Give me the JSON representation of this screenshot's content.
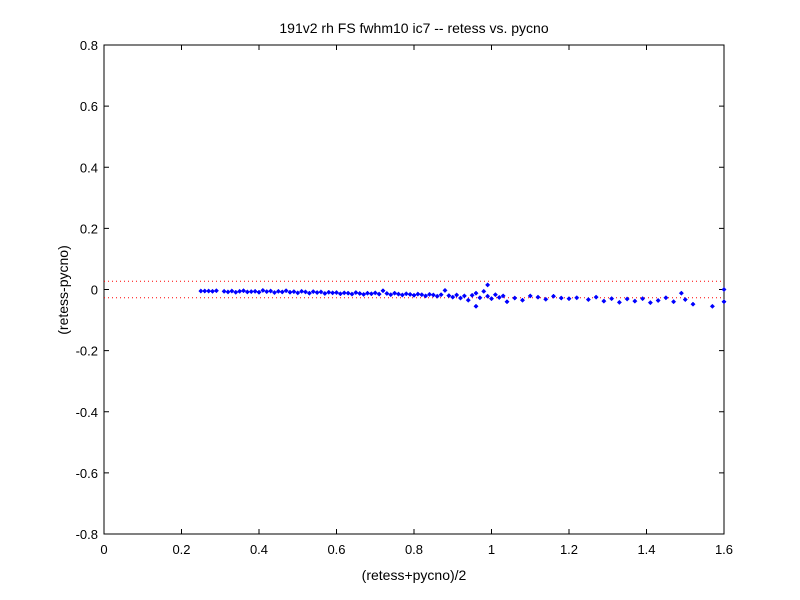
{
  "chart_data": {
    "type": "scatter",
    "title": "191v2 rh FS fwhm10 ic7 -- retess vs. pycno",
    "xlabel": "(retess+pycno)/2",
    "ylabel": "(retess-pycno)",
    "xlim": [
      0,
      1.6
    ],
    "ylim": [
      -0.8,
      0.8
    ],
    "xticks": [
      0,
      0.2,
      0.4,
      0.6,
      0.8,
      1,
      1.2,
      1.4,
      1.6
    ],
    "xtick_labels": [
      "0",
      "0.2",
      "0.4",
      "0.6",
      "0.8",
      "1",
      "1.2",
      "1.4",
      "1.6"
    ],
    "yticks": [
      0.8,
      0.6,
      0.4,
      0.2,
      0,
      -0.2,
      -0.4,
      -0.6,
      -0.8
    ],
    "ytick_labels": [
      "0.8",
      "0.6",
      "0.4",
      "0.2",
      "0",
      "-0.2",
      "-0.4",
      "-0.6",
      "-0.8"
    ],
    "grid": false,
    "marker_color": "#0000ff",
    "reference_line_color": "#ff0000",
    "reference_lines": [
      0.027,
      -0.027
    ],
    "series": [
      {
        "points": [
          [
            0.25,
            -0.005
          ],
          [
            0.26,
            -0.005
          ],
          [
            0.27,
            -0.005
          ],
          [
            0.28,
            -0.006
          ],
          [
            0.29,
            -0.004
          ],
          [
            0.31,
            -0.006
          ],
          [
            0.32,
            -0.008
          ],
          [
            0.33,
            -0.005
          ],
          [
            0.34,
            -0.009
          ],
          [
            0.35,
            -0.006
          ],
          [
            0.36,
            -0.004
          ],
          [
            0.37,
            -0.008
          ],
          [
            0.38,
            -0.007
          ],
          [
            0.39,
            -0.006
          ],
          [
            0.4,
            -0.009
          ],
          [
            0.41,
            -0.003
          ],
          [
            0.42,
            -0.007
          ],
          [
            0.43,
            -0.005
          ],
          [
            0.44,
            -0.01
          ],
          [
            0.45,
            -0.006
          ],
          [
            0.46,
            -0.008
          ],
          [
            0.47,
            -0.004
          ],
          [
            0.48,
            -0.009
          ],
          [
            0.49,
            -0.007
          ],
          [
            0.5,
            -0.011
          ],
          [
            0.51,
            -0.006
          ],
          [
            0.52,
            -0.008
          ],
          [
            0.53,
            -0.012
          ],
          [
            0.54,
            -0.007
          ],
          [
            0.55,
            -0.01
          ],
          [
            0.56,
            -0.008
          ],
          [
            0.57,
            -0.013
          ],
          [
            0.58,
            -0.009
          ],
          [
            0.59,
            -0.011
          ],
          [
            0.6,
            -0.01
          ],
          [
            0.61,
            -0.014
          ],
          [
            0.62,
            -0.011
          ],
          [
            0.63,
            -0.012
          ],
          [
            0.64,
            -0.015
          ],
          [
            0.65,
            -0.01
          ],
          [
            0.66,
            -0.013
          ],
          [
            0.67,
            -0.016
          ],
          [
            0.68,
            -0.012
          ],
          [
            0.69,
            -0.014
          ],
          [
            0.7,
            -0.011
          ],
          [
            0.71,
            -0.015
          ],
          [
            0.72,
            -0.004
          ],
          [
            0.73,
            -0.013
          ],
          [
            0.74,
            -0.017
          ],
          [
            0.75,
            -0.012
          ],
          [
            0.76,
            -0.015
          ],
          [
            0.77,
            -0.018
          ],
          [
            0.78,
            -0.014
          ],
          [
            0.79,
            -0.016
          ],
          [
            0.8,
            -0.019
          ],
          [
            0.81,
            -0.015
          ],
          [
            0.82,
            -0.017
          ],
          [
            0.83,
            -0.021
          ],
          [
            0.84,
            -0.016
          ],
          [
            0.85,
            -0.018
          ],
          [
            0.86,
            -0.022
          ],
          [
            0.87,
            -0.017
          ],
          [
            0.88,
            -0.003
          ],
          [
            0.89,
            -0.02
          ],
          [
            0.9,
            -0.025
          ],
          [
            0.91,
            -0.018
          ],
          [
            0.92,
            -0.028
          ],
          [
            0.93,
            -0.021
          ],
          [
            0.94,
            -0.035
          ],
          [
            0.95,
            -0.019
          ],
          [
            0.96,
            -0.012
          ],
          [
            0.97,
            -0.027
          ],
          [
            0.98,
            -0.006
          ],
          [
            0.99,
            -0.022
          ],
          [
            1.0,
            -0.03
          ],
          [
            1.01,
            -0.017
          ],
          [
            1.02,
            -0.026
          ],
          [
            1.03,
            -0.021
          ],
          [
            1.04,
            -0.04
          ],
          [
            1.06,
            -0.028
          ],
          [
            1.08,
            -0.035
          ],
          [
            1.1,
            -0.021
          ],
          [
            1.12,
            -0.025
          ],
          [
            1.14,
            -0.032
          ],
          [
            1.16,
            -0.022
          ],
          [
            1.18,
            -0.028
          ],
          [
            1.2,
            -0.03
          ],
          [
            1.22,
            -0.027
          ],
          [
            1.25,
            -0.033
          ],
          [
            1.27,
            -0.025
          ],
          [
            1.29,
            -0.038
          ],
          [
            1.31,
            -0.03
          ],
          [
            1.33,
            -0.042
          ],
          [
            1.35,
            -0.031
          ],
          [
            1.37,
            -0.038
          ],
          [
            1.39,
            -0.03
          ],
          [
            1.41,
            -0.043
          ],
          [
            1.43,
            -0.036
          ],
          [
            1.45,
            -0.027
          ],
          [
            1.47,
            -0.04
          ],
          [
            1.49,
            -0.012
          ],
          [
            1.5,
            -0.033
          ],
          [
            1.52,
            -0.048
          ],
          [
            1.57,
            -0.055
          ],
          [
            1.6,
            0.0
          ],
          [
            1.6,
            -0.04
          ],
          [
            0.96,
            -0.055
          ],
          [
            0.99,
            0.015
          ]
        ]
      }
    ]
  }
}
